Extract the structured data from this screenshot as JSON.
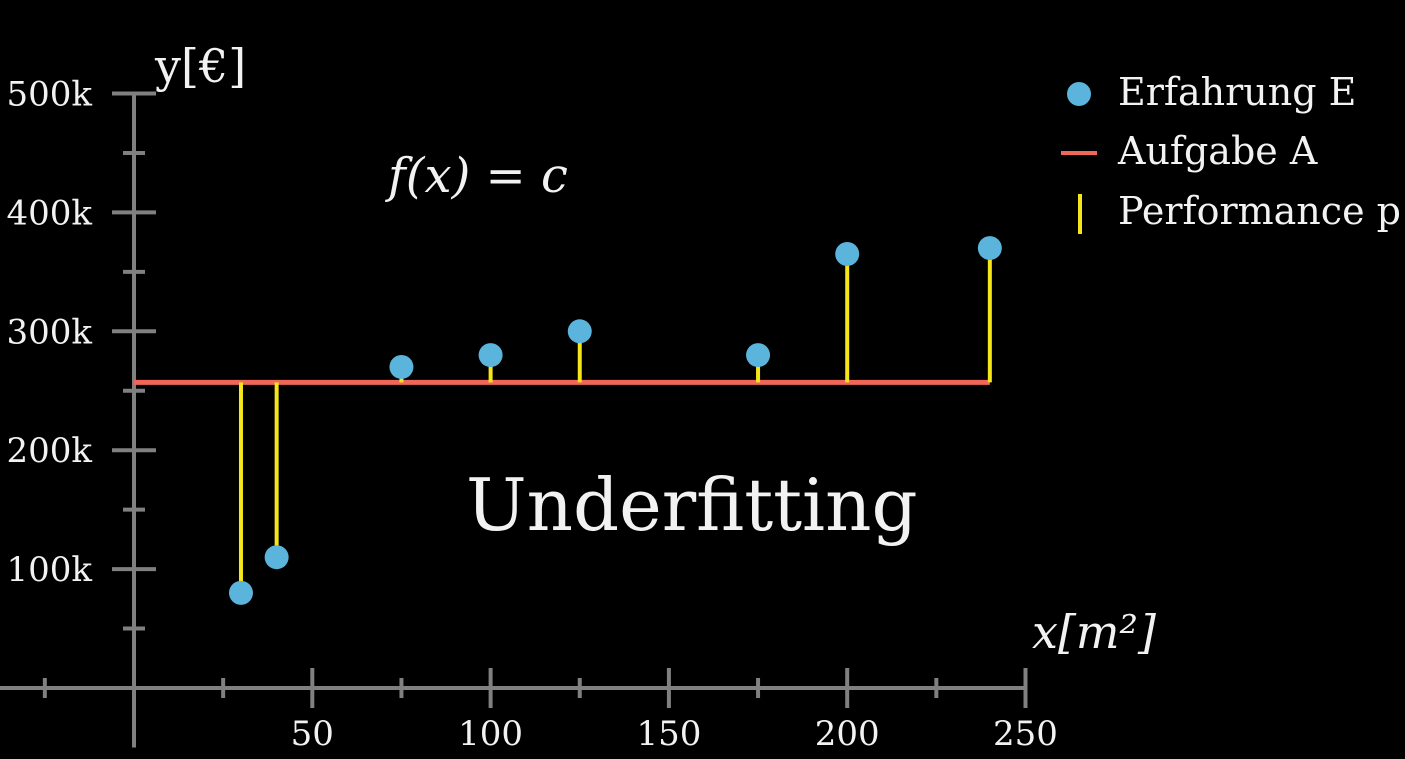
{
  "chart_data": {
    "type": "scatter",
    "xlabel": "x[m²]",
    "ylabel": "y[€]",
    "xlim": [
      -50,
      250
    ],
    "ylim": [
      -50000,
      500000
    ],
    "x_ticks": [
      50,
      100,
      150,
      200,
      250
    ],
    "x_minor_ticks": [
      -25,
      25,
      75,
      125,
      175,
      225
    ],
    "y_ticks": [
      {
        "value": 100000,
        "label": "100k"
      },
      {
        "value": 200000,
        "label": "200k"
      },
      {
        "value": 300000,
        "label": "300k"
      },
      {
        "value": 400000,
        "label": "400k"
      },
      {
        "value": 500000,
        "label": "500k"
      }
    ],
    "y_minor_ticks": [
      50000,
      150000,
      250000,
      350000,
      450000
    ],
    "series": [
      {
        "name": "Erfahrung E",
        "kind": "points",
        "color": "#5ab4dc",
        "x": [
          30,
          40,
          75,
          100,
          125,
          175,
          200,
          240
        ],
        "y": [
          80000,
          110000,
          270000,
          280000,
          300000,
          280000,
          365000,
          370000
        ]
      },
      {
        "name": "Aufgabe A",
        "kind": "line",
        "color": "#f0675a",
        "x": [
          0,
          240
        ],
        "y": [
          257000,
          257000
        ]
      },
      {
        "name": "Performance p",
        "kind": "residuals",
        "color": "#f5e61a",
        "baseline": 257000
      }
    ],
    "annotations": {
      "formula": "f(x) = c",
      "caption": "Underfitting"
    },
    "legend": "top-right",
    "grid": false
  }
}
